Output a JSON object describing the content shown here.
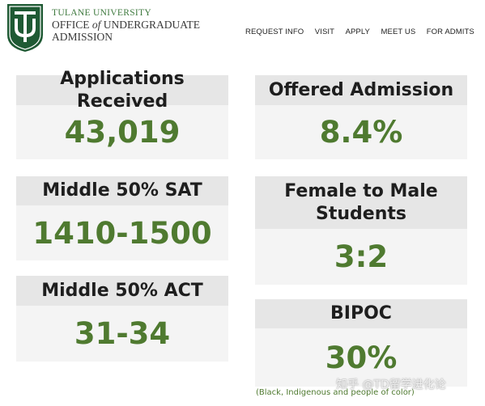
{
  "header": {
    "university": "TULANE UNIVERSITY",
    "office_prefix": "OFFICE",
    "office_of": "of",
    "office_suffix": "UNDERGRADUATE",
    "admission": "ADMISSION"
  },
  "nav": {
    "items": [
      "REQUEST INFO",
      "VISIT",
      "APPLY",
      "MEET US",
      "FOR ADMITS"
    ]
  },
  "stats": {
    "applications": {
      "label": "Applications Received",
      "value": "43,019"
    },
    "sat": {
      "label": "Middle 50% SAT",
      "value": "1410-1500"
    },
    "act": {
      "label": "Middle 50% ACT",
      "value": "31-34"
    },
    "offered": {
      "label": "Offered Admission",
      "value": "8.4%"
    },
    "gender": {
      "label_line1": "Female to Male",
      "label_line2": "Students",
      "value": "3:2"
    },
    "bipoc": {
      "label": "BIPOC",
      "value": "30%",
      "note": "(Black, Indigenous and people of color)"
    }
  },
  "watermark": "知乎 @TD留学进化论",
  "colors": {
    "brand_green": "#1f5a34",
    "value_green": "#4f7a30",
    "header_bg": "#e6e6e6",
    "body_bg": "#f4f4f4"
  }
}
